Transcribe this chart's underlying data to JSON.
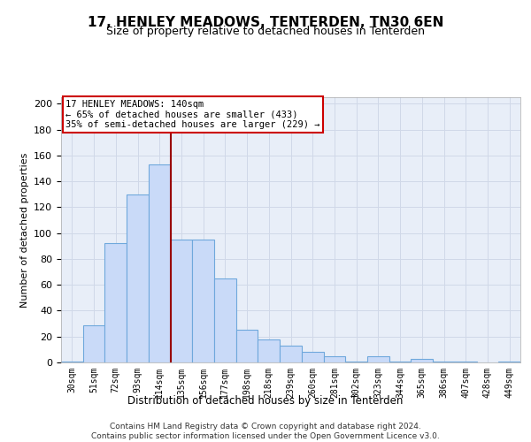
{
  "title": "17, HENLEY MEADOWS, TENTERDEN, TN30 6EN",
  "subtitle": "Size of property relative to detached houses in Tenterden",
  "xlabel": "Distribution of detached houses by size in Tenterden",
  "ylabel": "Number of detached properties",
  "categories": [
    "30sqm",
    "51sqm",
    "72sqm",
    "93sqm",
    "114sqm",
    "135sqm",
    "156sqm",
    "177sqm",
    "198sqm",
    "218sqm",
    "239sqm",
    "260sqm",
    "281sqm",
    "302sqm",
    "323sqm",
    "344sqm",
    "365sqm",
    "386sqm",
    "407sqm",
    "428sqm",
    "449sqm"
  ],
  "values": [
    1,
    29,
    92,
    130,
    153,
    95,
    95,
    65,
    25,
    18,
    13,
    8,
    5,
    1,
    5,
    1,
    3,
    1,
    1,
    0,
    1
  ],
  "bar_color": "#c9daf8",
  "bar_edge_color": "#6fa8dc",
  "vline_x": 4.5,
  "vline_color": "#990000",
  "annotation_lines": [
    "17 HENLEY MEADOWS: 140sqm",
    "← 65% of detached houses are smaller (433)",
    "35% of semi-detached houses are larger (229) →"
  ],
  "annotation_box_color": "#cc0000",
  "grid_color": "#d0d8e8",
  "background_color": "#e8eef8",
  "ylim": [
    0,
    205
  ],
  "yticks": [
    0,
    20,
    40,
    60,
    80,
    100,
    120,
    140,
    160,
    180,
    200
  ],
  "footer_line1": "Contains HM Land Registry data © Crown copyright and database right 2024.",
  "footer_line2": "Contains public sector information licensed under the Open Government Licence v3.0."
}
